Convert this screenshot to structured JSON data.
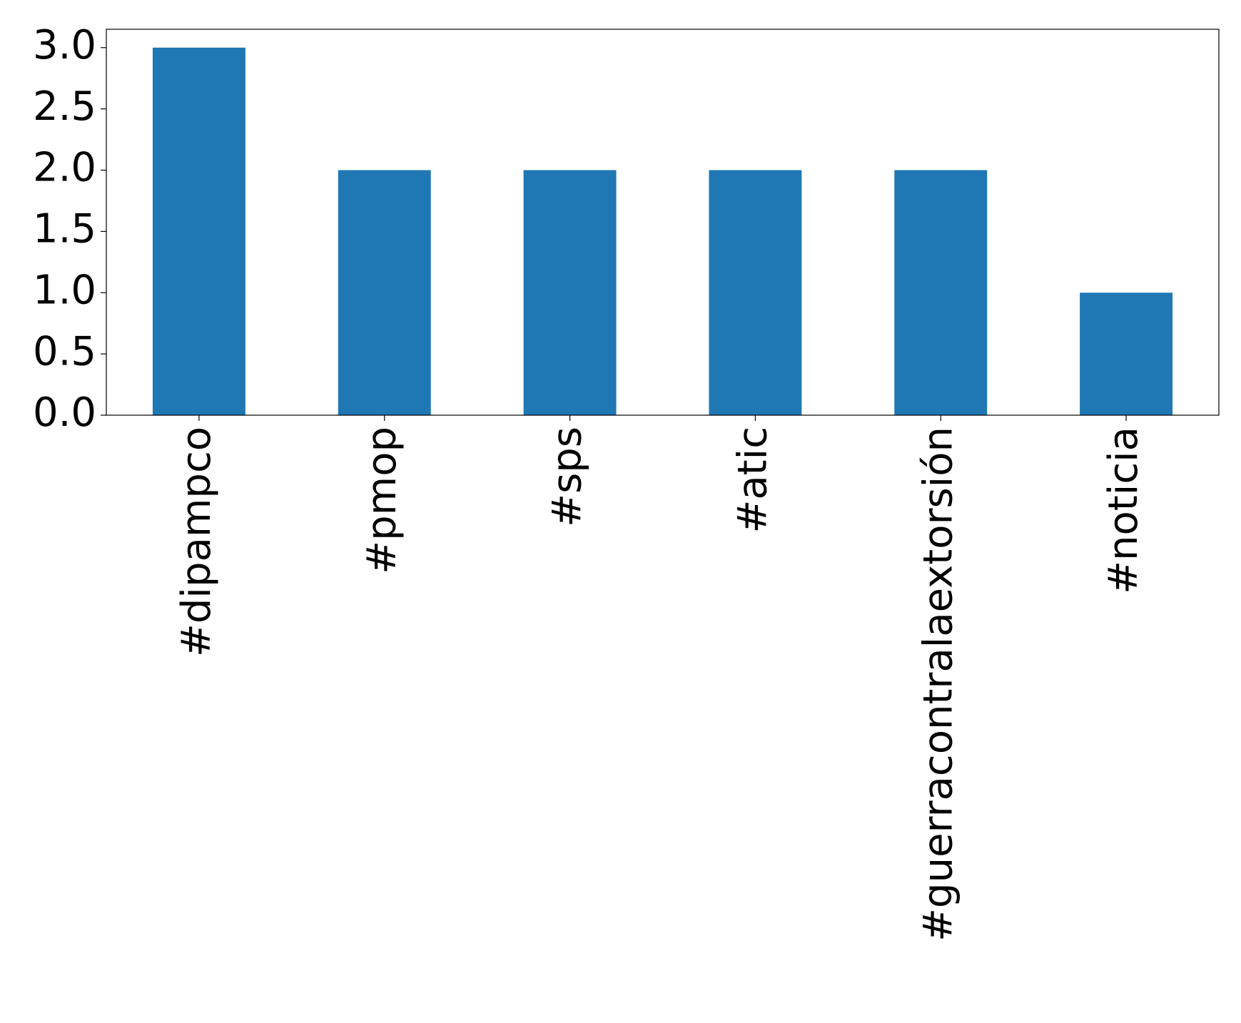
{
  "chart_data": {
    "type": "bar",
    "categories": [
      "#dipampco",
      "#pmop",
      "#sps",
      "#atic",
      "#guerracontralaextorsión",
      "#noticia"
    ],
    "values": [
      3,
      2,
      2,
      2,
      2,
      1
    ],
    "color": "#1f77b4",
    "ylim": [
      0,
      3.15
    ],
    "yticks": [
      {
        "value": 0,
        "label": "0.0"
      },
      {
        "value": 0.5,
        "label": "0.5"
      },
      {
        "value": 1,
        "label": "1.0"
      },
      {
        "value": 1.5,
        "label": "1.5"
      },
      {
        "value": 2,
        "label": "2.0"
      },
      {
        "value": 2.5,
        "label": "2.5"
      },
      {
        "value": 3,
        "label": "3.0"
      }
    ]
  }
}
